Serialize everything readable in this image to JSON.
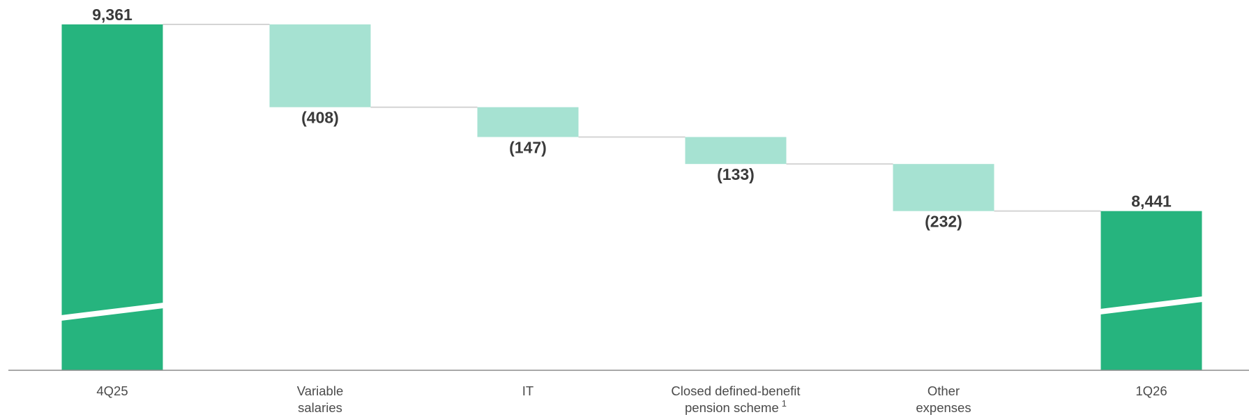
{
  "chart_data": {
    "type": "waterfall",
    "title": "",
    "xlabel": "",
    "ylabel": "",
    "axis_break": true,
    "grid": false,
    "categories": [
      {
        "label": [
          "4Q25"
        ],
        "superscript": "",
        "kind": "total",
        "value": 9361,
        "value_label": "9,361"
      },
      {
        "label": [
          "Variable",
          "salaries"
        ],
        "superscript": "",
        "kind": "delta",
        "value": -408,
        "value_label": "(408)"
      },
      {
        "label": [
          "IT"
        ],
        "superscript": "",
        "kind": "delta",
        "value": -147,
        "value_label": "(147)"
      },
      {
        "label": [
          "Closed defined-benefit",
          "pension scheme"
        ],
        "superscript": "1",
        "kind": "delta",
        "value": -133,
        "value_label": "(133)"
      },
      {
        "label": [
          "Other",
          "expenses"
        ],
        "superscript": "",
        "kind": "delta",
        "value": -232,
        "value_label": "(232)"
      },
      {
        "label": [
          "1Q26"
        ],
        "superscript": "",
        "kind": "total",
        "value": 8441,
        "value_label": "8,441"
      }
    ],
    "colors": {
      "total": "#26b47e",
      "delta": "#a6e2d2",
      "connector": "#d4d4d4",
      "axis": "#8c8c8c",
      "label": "#3a3a3a",
      "category": "#4a4a4a"
    }
  }
}
